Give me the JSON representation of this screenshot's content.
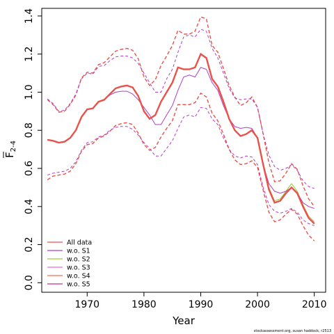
{
  "chart_data": {
    "type": "line",
    "title": "",
    "xlabel": "Year",
    "ylabel_main": "F",
    "ylabel_sub": "2-4",
    "xlim": [
      1962,
      2012
    ],
    "ylim": [
      -0.05,
      1.44
    ],
    "x_ticks": [
      1970,
      1980,
      1990,
      2000,
      2010
    ],
    "y_ticks": [
      0.0,
      0.2,
      0.4,
      0.6,
      0.8,
      1.0,
      1.2,
      1.4
    ],
    "y_tick_labels": [
      "0.0",
      "0.2",
      "0.4",
      "0.6",
      "0.8",
      "1.0",
      "1.2",
      "1.4"
    ],
    "grid": false,
    "legend_position": "bottom-left",
    "credit": "stockassessment.org, susan haddock, r2513",
    "x": [
      1963,
      1964,
      1965,
      1966,
      1967,
      1968,
      1969,
      1970,
      1971,
      1972,
      1973,
      1974,
      1975,
      1976,
      1977,
      1978,
      1979,
      1980,
      1981,
      1982,
      1983,
      1984,
      1985,
      1986,
      1987,
      1988,
      1989,
      1990,
      1991,
      1992,
      1993,
      1994,
      1995,
      1996,
      1997,
      1998,
      1999,
      2000,
      2001,
      2002,
      2003,
      2004,
      2005,
      2006,
      2007,
      2008,
      2009,
      2010
    ],
    "series": [
      {
        "name": "All data",
        "color": "#e8524a",
        "width": 2.4,
        "dash": "",
        "values": [
          0.75,
          0.745,
          0.735,
          0.74,
          0.76,
          0.8,
          0.87,
          0.91,
          0.915,
          0.95,
          0.96,
          0.99,
          1.02,
          1.03,
          1.035,
          1.025,
          0.98,
          0.9,
          0.86,
          0.88,
          0.95,
          1.0,
          1.05,
          1.13,
          1.12,
          1.12,
          1.13,
          1.2,
          1.18,
          1.07,
          1.03,
          0.95,
          0.86,
          0.8,
          0.77,
          0.78,
          0.8,
          0.76,
          0.62,
          0.49,
          0.42,
          0.43,
          0.47,
          0.5,
          0.47,
          0.4,
          0.34,
          0.31
        ]
      },
      {
        "name": "w.o. S1",
        "color": "#b03cc8",
        "width": 1,
        "dash": "",
        "values": [
          0.75,
          0.745,
          0.735,
          0.74,
          0.76,
          0.8,
          0.87,
          0.91,
          0.915,
          0.95,
          0.96,
          0.985,
          1.0,
          1.005,
          1.005,
          0.99,
          0.96,
          0.92,
          0.88,
          0.83,
          0.83,
          0.88,
          0.93,
          1.01,
          1.08,
          1.09,
          1.08,
          1.13,
          1.12,
          1.05,
          1.01,
          0.93,
          0.86,
          0.82,
          0.81,
          0.815,
          0.81,
          0.76,
          0.62,
          0.52,
          0.48,
          0.47,
          0.48,
          0.5,
          0.47,
          0.42,
          0.4,
          0.39
        ]
      },
      {
        "name": "w.o. S2",
        "color": "#9ccc3a",
        "width": 1,
        "dash": "",
        "values": [
          0.75,
          0.745,
          0.735,
          0.74,
          0.76,
          0.8,
          0.87,
          0.91,
          0.915,
          0.95,
          0.96,
          0.99,
          1.02,
          1.03,
          1.035,
          1.025,
          0.98,
          0.9,
          0.86,
          0.88,
          0.95,
          1.0,
          1.05,
          1.13,
          1.12,
          1.12,
          1.13,
          1.2,
          1.18,
          1.07,
          1.03,
          0.95,
          0.86,
          0.8,
          0.77,
          0.78,
          0.8,
          0.76,
          0.63,
          0.5,
          0.43,
          0.44,
          0.48,
          0.52,
          0.48,
          0.41,
          0.35,
          0.32
        ]
      },
      {
        "name": "w.o. S3",
        "color": "#f06ad0",
        "width": 1,
        "dash": "",
        "values": [
          0.75,
          0.745,
          0.735,
          0.74,
          0.76,
          0.8,
          0.87,
          0.91,
          0.915,
          0.95,
          0.96,
          0.99,
          1.02,
          1.03,
          1.035,
          1.025,
          0.98,
          0.9,
          0.86,
          0.88,
          0.95,
          1.0,
          1.05,
          1.13,
          1.12,
          1.12,
          1.13,
          1.2,
          1.18,
          1.07,
          1.03,
          0.95,
          0.86,
          0.8,
          0.77,
          0.78,
          0.8,
          0.76,
          0.62,
          0.49,
          0.42,
          0.43,
          0.47,
          0.5,
          0.47,
          0.4,
          0.34,
          0.31
        ]
      },
      {
        "name": "w.o. S4",
        "color": "#f07050",
        "width": 1,
        "dash": "",
        "values": [
          0.75,
          0.745,
          0.735,
          0.74,
          0.76,
          0.8,
          0.87,
          0.91,
          0.915,
          0.95,
          0.96,
          0.99,
          1.02,
          1.03,
          1.035,
          1.025,
          0.98,
          0.9,
          0.86,
          0.88,
          0.95,
          1.0,
          1.05,
          1.13,
          1.12,
          1.12,
          1.13,
          1.2,
          1.18,
          1.07,
          1.03,
          0.95,
          0.86,
          0.8,
          0.77,
          0.78,
          0.8,
          0.76,
          0.62,
          0.49,
          0.42,
          0.43,
          0.47,
          0.5,
          0.47,
          0.4,
          0.34,
          0.31
        ]
      },
      {
        "name": "w.o. S5",
        "color": "#c0309a",
        "width": 1,
        "dash": "",
        "values": [
          0.75,
          0.745,
          0.735,
          0.74,
          0.76,
          0.8,
          0.87,
          0.91,
          0.915,
          0.95,
          0.96,
          0.99,
          1.02,
          1.03,
          1.035,
          1.025,
          0.98,
          0.9,
          0.86,
          0.88,
          0.95,
          1.0,
          1.05,
          1.13,
          1.12,
          1.12,
          1.13,
          1.2,
          1.18,
          1.07,
          1.03,
          0.95,
          0.86,
          0.8,
          0.77,
          0.78,
          0.8,
          0.76,
          0.62,
          0.49,
          0.42,
          0.43,
          0.47,
          0.5,
          0.47,
          0.4,
          0.34,
          0.31
        ]
      }
    ],
    "bands": [
      {
        "color": "#e8524a",
        "width": 1.4,
        "dash": "5,3",
        "values": [
          0.96,
          0.935,
          0.895,
          0.9,
          0.935,
          0.985,
          1.075,
          1.105,
          1.1,
          1.145,
          1.155,
          1.185,
          1.215,
          1.225,
          1.23,
          1.22,
          1.175,
          1.08,
          1.035,
          1.065,
          1.14,
          1.19,
          1.245,
          1.325,
          1.305,
          1.305,
          1.32,
          1.395,
          1.385,
          1.245,
          1.21,
          1.125,
          1.035,
          0.975,
          0.93,
          0.945,
          0.975,
          0.92,
          0.78,
          0.63,
          0.53,
          0.535,
          0.575,
          0.625,
          0.595,
          0.51,
          0.44,
          0.4
        ]
      },
      {
        "color": "#e8524a",
        "width": 1.4,
        "dash": "5,3",
        "values": [
          0.54,
          0.56,
          0.565,
          0.57,
          0.585,
          0.625,
          0.69,
          0.725,
          0.73,
          0.76,
          0.77,
          0.795,
          0.825,
          0.835,
          0.84,
          0.83,
          0.785,
          0.725,
          0.695,
          0.71,
          0.765,
          0.81,
          0.85,
          0.935,
          0.935,
          0.935,
          0.945,
          0.995,
          0.975,
          0.89,
          0.85,
          0.78,
          0.7,
          0.645,
          0.62,
          0.625,
          0.64,
          0.605,
          0.485,
          0.37,
          0.32,
          0.33,
          0.36,
          0.385,
          0.36,
          0.3,
          0.25,
          0.22
        ]
      },
      {
        "color": "#b03cc8",
        "width": 1,
        "dash": "4,3",
        "values": [
          0.965,
          0.94,
          0.9,
          0.905,
          0.94,
          0.99,
          1.07,
          1.1,
          1.095,
          1.135,
          1.14,
          1.165,
          1.185,
          1.19,
          1.19,
          1.18,
          1.15,
          1.1,
          1.05,
          1.0,
          1.0,
          1.07,
          1.12,
          1.21,
          1.29,
          1.3,
          1.29,
          1.33,
          1.32,
          1.23,
          1.18,
          1.1,
          1.02,
          0.97,
          0.96,
          0.965,
          0.965,
          0.92,
          0.78,
          0.67,
          0.61,
          0.59,
          0.6,
          0.62,
          0.59,
          0.535,
          0.505,
          0.495
        ]
      },
      {
        "color": "#b03cc8",
        "width": 1,
        "dash": "4,3",
        "values": [
          0.565,
          0.575,
          0.58,
          0.585,
          0.6,
          0.635,
          0.695,
          0.735,
          0.74,
          0.765,
          0.775,
          0.8,
          0.815,
          0.82,
          0.82,
          0.805,
          0.775,
          0.735,
          0.705,
          0.665,
          0.665,
          0.705,
          0.745,
          0.81,
          0.87,
          0.88,
          0.87,
          0.92,
          0.915,
          0.86,
          0.83,
          0.76,
          0.7,
          0.665,
          0.655,
          0.665,
          0.66,
          0.62,
          0.5,
          0.41,
          0.375,
          0.365,
          0.375,
          0.39,
          0.37,
          0.33,
          0.31,
          0.3
        ]
      }
    ]
  }
}
